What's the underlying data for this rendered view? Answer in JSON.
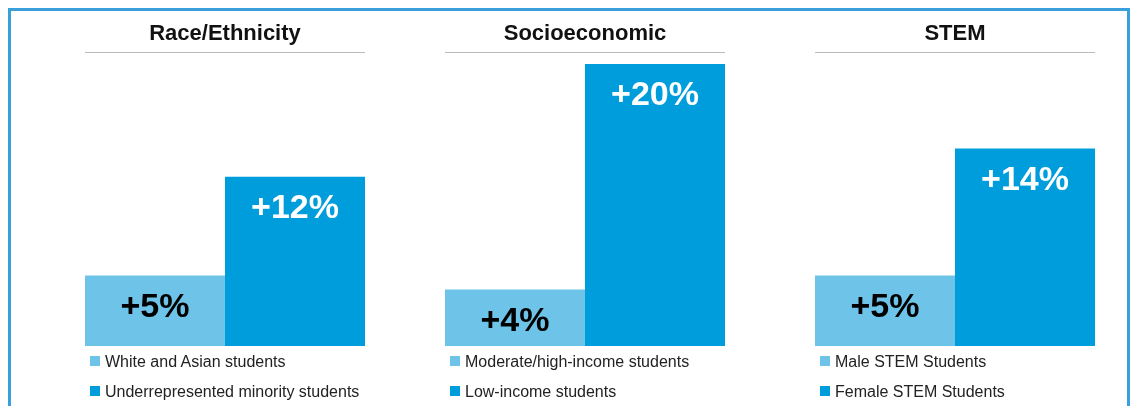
{
  "chart_data": [
    {
      "type": "bar",
      "title": "Race/Ethnicity",
      "categories": [
        null
      ],
      "legend": "bottom",
      "series": [
        {
          "name": "White and Asian students",
          "color": "#6ec4e8",
          "values": [
            5
          ],
          "value_labels": [
            "+5%"
          ]
        },
        {
          "name": "Underrepresented minority students",
          "color": "#009ddc",
          "values": [
            12
          ],
          "value_labels": [
            "+12%"
          ]
        }
      ]
    },
    {
      "type": "bar",
      "title": "Socioeconomic",
      "categories": [
        null
      ],
      "legend": "bottom",
      "series": [
        {
          "name": "Moderate/high-income students",
          "color": "#6ec4e8",
          "values": [
            4
          ],
          "value_labels": [
            "+4%"
          ]
        },
        {
          "name": "Low-income students",
          "color": "#009ddc",
          "values": [
            20
          ],
          "value_labels": [
            "+20%"
          ]
        }
      ]
    },
    {
      "type": "bar",
      "title": "STEM",
      "categories": [
        null
      ],
      "legend": "bottom",
      "series": [
        {
          "name": "Male STEM Students",
          "color": "#6ec4e8",
          "values": [
            5
          ],
          "value_labels": [
            "+5%"
          ]
        },
        {
          "name": "Female STEM Students",
          "color": "#009ddc",
          "values": [
            14
          ],
          "value_labels": [
            "+14%"
          ]
        }
      ]
    }
  ]
}
